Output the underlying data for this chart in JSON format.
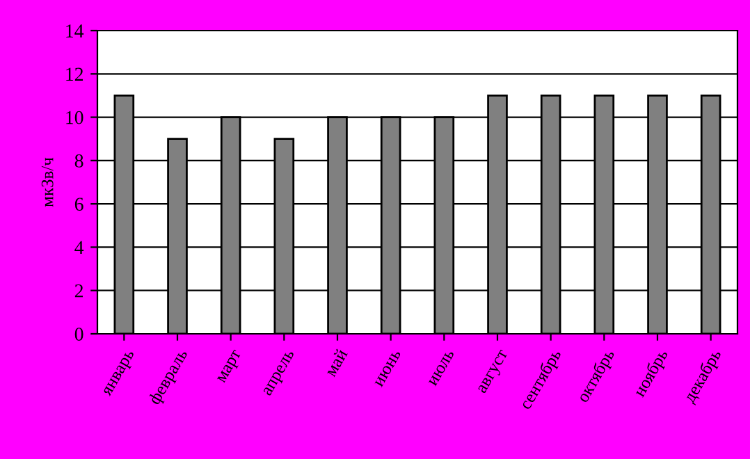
{
  "chart_data": {
    "type": "bar",
    "ylabel": "мкЗв/ч",
    "categories": [
      "январь",
      "февраль",
      "март",
      "апрель",
      "май",
      "июнь",
      "июль",
      "август",
      "сентябрь",
      "октябрь",
      "ноябрь",
      "декабрь"
    ],
    "values": [
      11,
      9,
      10,
      9,
      10,
      10,
      10,
      11,
      11,
      11,
      11,
      11
    ],
    "color": "#808080",
    "ylim": [
      0,
      14
    ],
    "yticks": [
      0,
      2,
      4,
      6,
      8,
      10,
      12,
      14
    ],
    "grid": "y",
    "legend": false
  }
}
